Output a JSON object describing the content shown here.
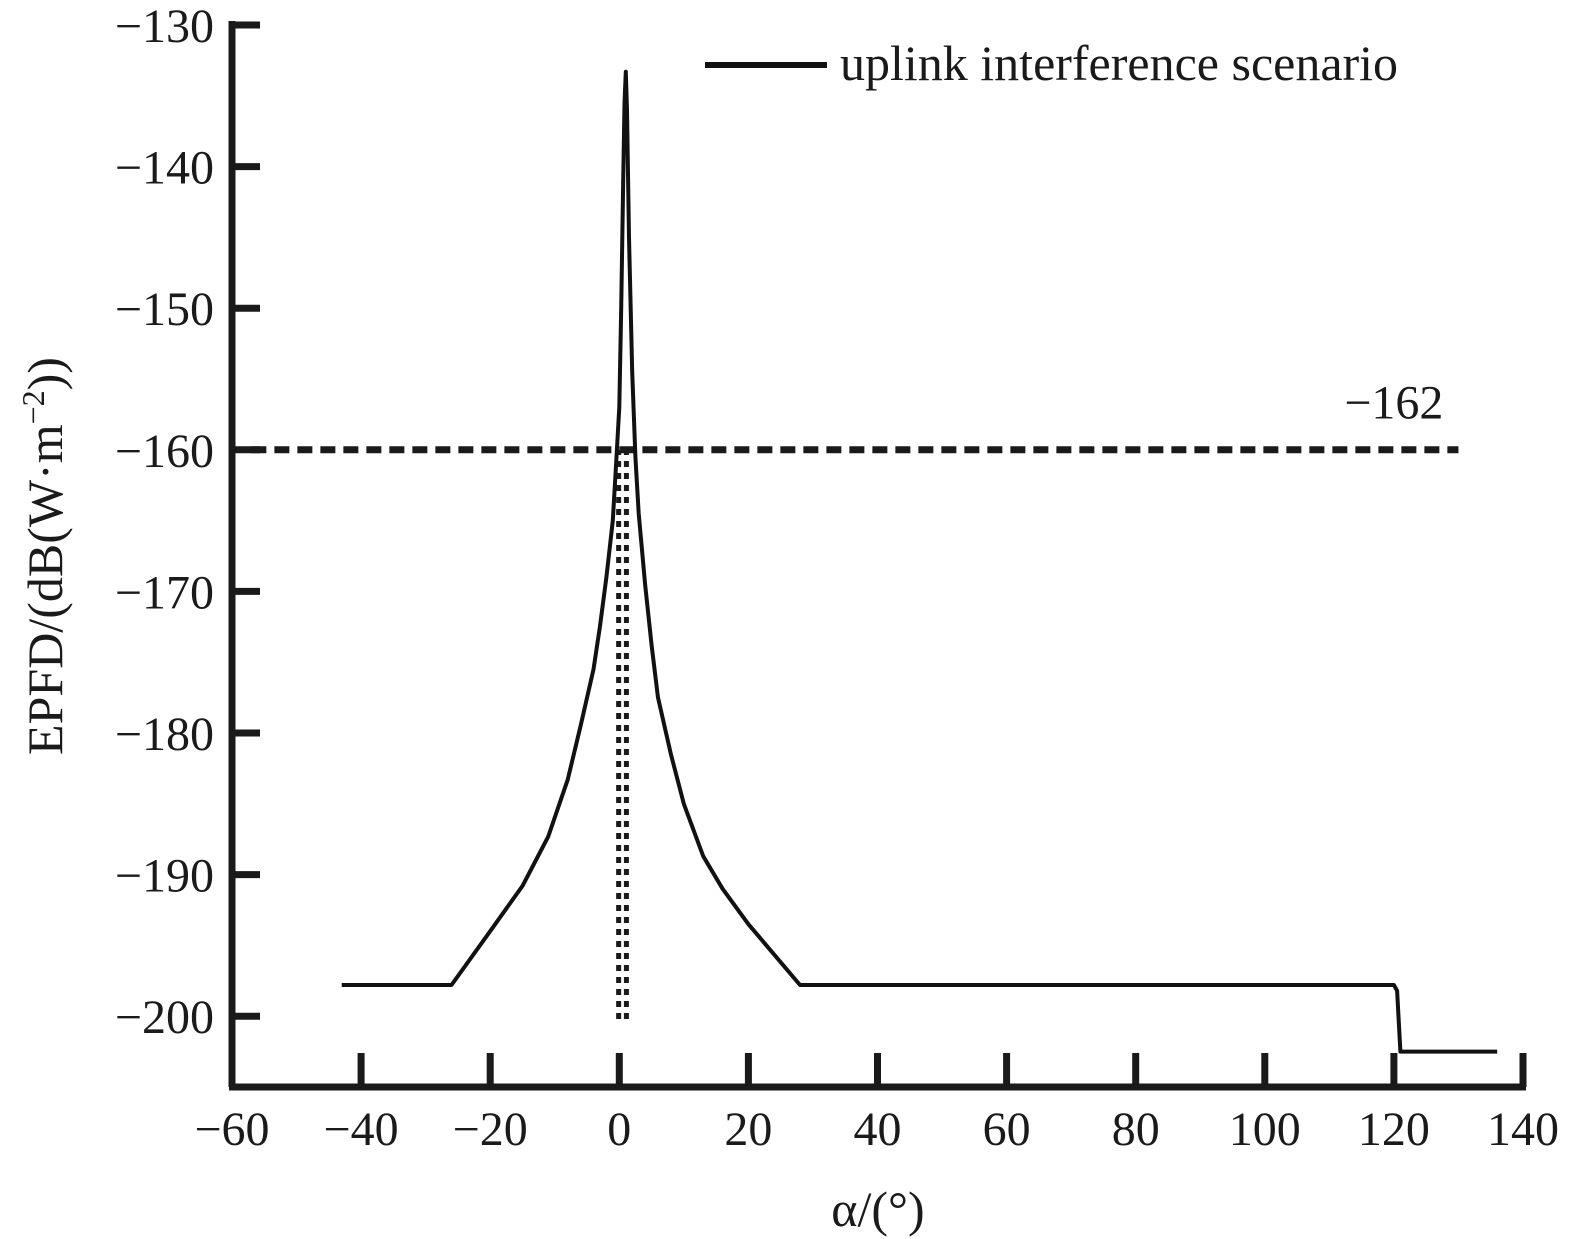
{
  "chart_data": {
    "type": "line",
    "xlabel": "α/(°)",
    "ylabel": "EPFD/(dB(W·m",
    "ylabel_sup": "−2",
    "ylabel_tail": "))",
    "xlim": [
      -60,
      140
    ],
    "ylim": [
      -205,
      -130
    ],
    "xticks": [
      -60,
      -40,
      -20,
      0,
      20,
      40,
      60,
      80,
      100,
      120,
      140
    ],
    "xtick_labels": [
      "−60",
      "−40",
      "−20",
      "0",
      "20",
      "40",
      "60",
      "80",
      "100",
      "120",
      "140"
    ],
    "yticks": [
      -130,
      -140,
      -150,
      -160,
      -170,
      -180,
      -190,
      -200
    ],
    "ytick_labels": [
      "−130",
      "−140",
      "−150",
      "−160",
      "−170",
      "−180",
      "−190",
      "−200"
    ],
    "legend": {
      "position": "top-right",
      "entries": [
        "uplink interference scenario"
      ]
    },
    "series": [
      {
        "name": "uplink interference scenario",
        "style": "solid",
        "color": "#111111",
        "x": [
          -43,
          -26,
          -20,
          -15,
          -11,
          -8,
          -6,
          -4,
          -3,
          -2,
          -1,
          -0.5,
          0,
          0.3,
          0.6,
          0.8,
          1,
          1.2,
          1.5,
          2,
          2.5,
          3,
          4,
          5,
          6,
          8,
          10,
          13,
          16,
          20,
          28,
          120,
          120.5,
          121,
          136
        ],
        "y": [
          -197.8,
          -197.8,
          -194,
          -190.8,
          -187.3,
          -183.3,
          -179.5,
          -175.5,
          -172.5,
          -169,
          -165,
          -161,
          -157,
          -150,
          -141,
          -135.5,
          -133.3,
          -136,
          -145,
          -154.5,
          -160.5,
          -164.5,
          -169.5,
          -173.8,
          -177.5,
          -181.5,
          -185,
          -188.7,
          -191,
          -193.5,
          -197.8,
          -197.8,
          -198.2,
          -202.5,
          -202.5
        ]
      }
    ],
    "reference_lines": [
      {
        "orientation": "horizontal",
        "y": -160,
        "x_range": [
          -57,
          130
        ],
        "style": "dashed"
      },
      {
        "orientation": "vertical",
        "x": -0.1,
        "y_range": [
          -200.2,
          -160
        ],
        "style": "dotted"
      },
      {
        "orientation": "vertical",
        "x": 1.1,
        "y_range": [
          -200.2,
          -160
        ],
        "style": "dotted"
      }
    ],
    "annotations": [
      {
        "text": "−162",
        "x": 120,
        "y": -158.5
      }
    ]
  }
}
